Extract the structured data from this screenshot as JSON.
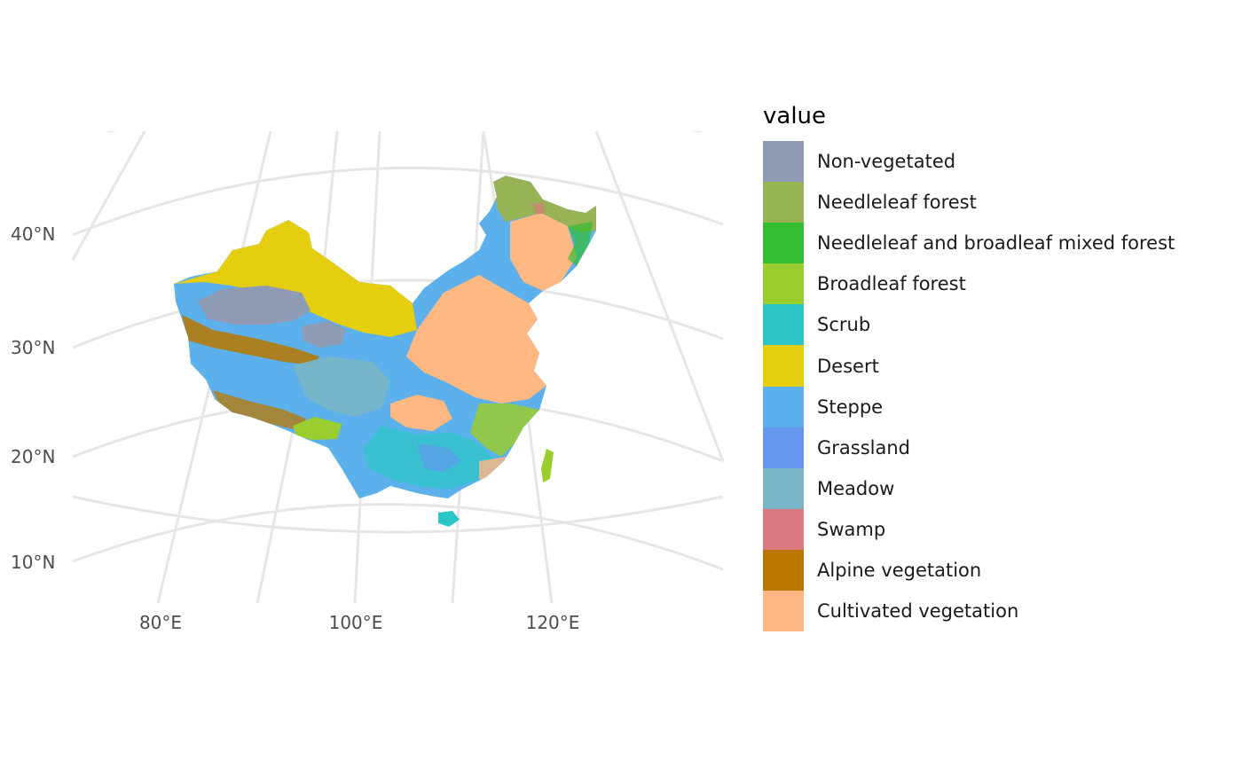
{
  "map": {
    "lat_labels": [
      "40°N",
      "30°N",
      "20°N",
      "10°N"
    ],
    "lon_labels": [
      "80°E",
      "100°E",
      "120°E"
    ],
    "graticule_color": "#e6e6e6"
  },
  "legend": {
    "title": "value",
    "items": [
      {
        "label": "Non-vegetated",
        "color": "#8f9ab5"
      },
      {
        "label": "Needleleaf forest",
        "color": "#98b355"
      },
      {
        "label": "Needleleaf and broadleaf mixed forest",
        "color": "#33bd33"
      },
      {
        "label": "Broadleaf forest",
        "color": "#9acd2f"
      },
      {
        "label": "Scrub",
        "color": "#2dc6c8"
      },
      {
        "label": "Desert",
        "color": "#e5cd10"
      },
      {
        "label": "Steppe",
        "color": "#5cb0ec"
      },
      {
        "label": "Grassland",
        "color": "#6695ee"
      },
      {
        "label": "Meadow",
        "color": "#7ab6c8"
      },
      {
        "label": "Swamp",
        "color": "#da7a80"
      },
      {
        "label": "Alpine vegetation",
        "color": "#b87800"
      },
      {
        "label": "Cultivated vegetation",
        "color": "#ffb882"
      }
    ]
  }
}
